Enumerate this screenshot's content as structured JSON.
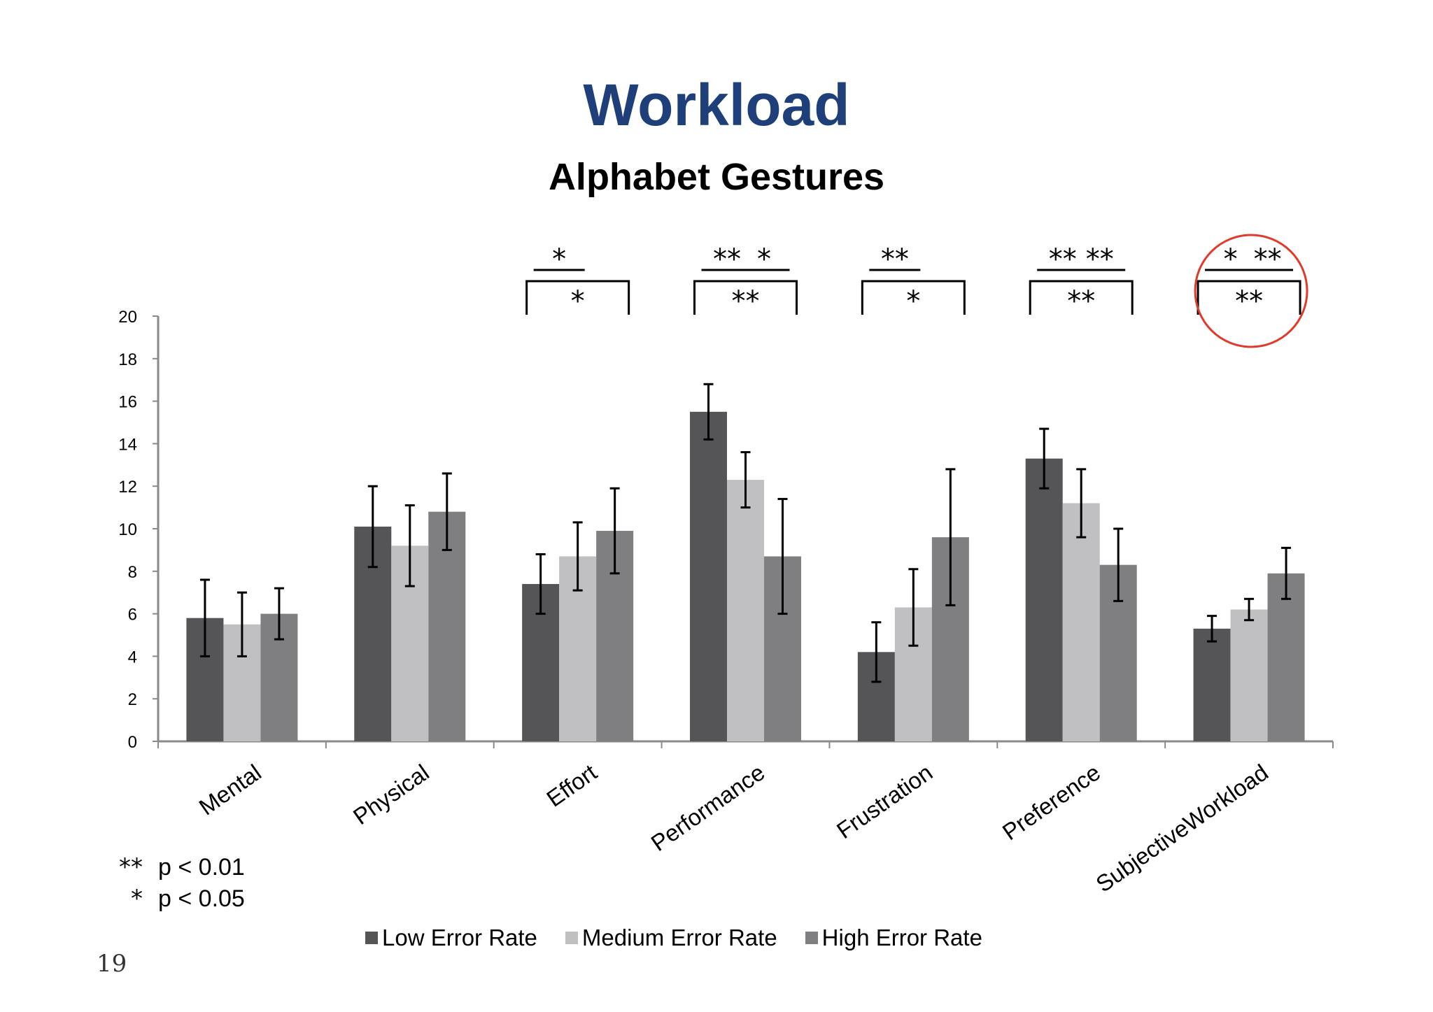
{
  "slide": {
    "title": "Workload",
    "page_number": "19"
  },
  "significance_legend": [
    {
      "mark": "**",
      "text": "p < 0.01"
    },
    {
      "mark": "*",
      "text": "p < 0.05"
    }
  ],
  "colors": {
    "title": "#1f3f7a",
    "low": "#555457",
    "medium": "#c0bfc2",
    "high": "#7f7e81",
    "highlight_circle": "#e03a2a"
  },
  "chart_data": {
    "type": "bar",
    "title": "Alphabet Gestures",
    "categories": [
      "Mental",
      "Physical",
      "Effort",
      "Performance",
      "Frustration",
      "Preference",
      "SubjectiveWorkload"
    ],
    "ylim": [
      0,
      20
    ],
    "yticks": [
      0,
      2,
      4,
      6,
      8,
      10,
      12,
      14,
      16,
      18,
      20
    ],
    "grid": false,
    "legend_position": "bottom",
    "series": [
      {
        "name": "Low Error Rate",
        "values": [
          5.8,
          10.1,
          7.4,
          15.5,
          4.2,
          13.3,
          5.3
        ],
        "error": [
          1.8,
          1.9,
          1.4,
          1.3,
          1.4,
          1.4,
          0.6
        ]
      },
      {
        "name": "Medium Error Rate",
        "values": [
          5.5,
          9.2,
          8.7,
          12.3,
          6.3,
          11.2,
          6.2
        ],
        "error": [
          1.5,
          1.9,
          1.6,
          1.3,
          1.8,
          1.6,
          0.5
        ]
      },
      {
        "name": "High Error Rate",
        "values": [
          6.0,
          10.8,
          9.9,
          8.7,
          9.6,
          8.3,
          7.9
        ],
        "error": [
          1.2,
          1.8,
          2.0,
          2.7,
          3.2,
          1.7,
          1.2
        ]
      }
    ],
    "annotations": [
      {
        "category": "Effort",
        "pairs": [
          {
            "between": [
              "Low Error Rate",
              "Medium Error Rate"
            ],
            "mark": "*"
          }
        ],
        "bracket": {
          "between": [
            "Low Error Rate",
            "High Error Rate"
          ],
          "mark": "*"
        }
      },
      {
        "category": "Performance",
        "pairs": [
          {
            "between": [
              "Low Error Rate",
              "Medium Error Rate"
            ],
            "mark": "**"
          },
          {
            "between": [
              "Medium Error Rate",
              "High Error Rate"
            ],
            "mark": "*"
          }
        ],
        "bracket": {
          "between": [
            "Low Error Rate",
            "High Error Rate"
          ],
          "mark": "**"
        }
      },
      {
        "category": "Frustration",
        "pairs": [
          {
            "between": [
              "Low Error Rate",
              "Medium Error Rate"
            ],
            "mark": "**"
          }
        ],
        "bracket": {
          "between": [
            "Low Error Rate",
            "High Error Rate"
          ],
          "mark": "*"
        }
      },
      {
        "category": "Preference",
        "pairs": [
          {
            "between": [
              "Low Error Rate",
              "Medium Error Rate"
            ],
            "mark": "**"
          },
          {
            "between": [
              "Medium Error Rate",
              "High Error Rate"
            ],
            "mark": "**"
          }
        ],
        "bracket": {
          "between": [
            "Low Error Rate",
            "High Error Rate"
          ],
          "mark": "**"
        }
      },
      {
        "category": "SubjectiveWorkload",
        "pairs": [
          {
            "between": [
              "Low Error Rate",
              "Medium Error Rate"
            ],
            "mark": "*"
          },
          {
            "between": [
              "Medium Error Rate",
              "High Error Rate"
            ],
            "mark": "**"
          }
        ],
        "bracket": {
          "between": [
            "Low Error Rate",
            "High Error Rate"
          ],
          "mark": "**"
        },
        "highlighted": true
      }
    ]
  }
}
